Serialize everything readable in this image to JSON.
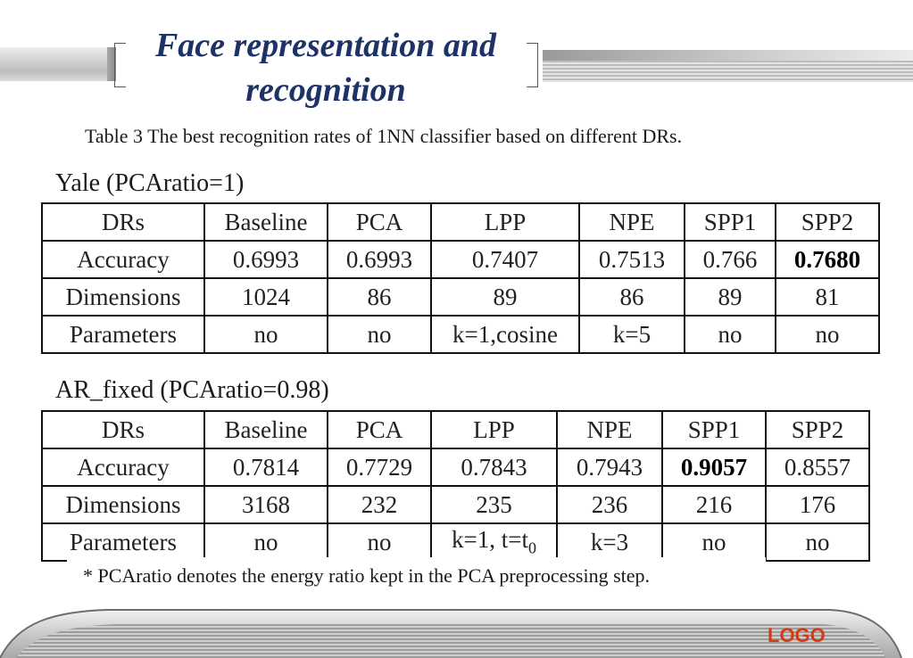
{
  "title": "Face representation and recognition",
  "caption": "Table 3 The best recognition rates of 1NN classifier based on different DRs.",
  "tables": [
    {
      "label": "Yale (PCAratio=1)",
      "header": [
        "DRs",
        "Baseline",
        "PCA",
        "LPP",
        "NPE",
        "SPP1",
        "SPP2"
      ],
      "rows": [
        [
          "Accuracy",
          "0.6993",
          "0.6993",
          "0.7407",
          "0.7513",
          "0.766",
          "0.7680"
        ],
        [
          "Dimensions",
          "1024",
          "86",
          "89",
          "86",
          "89",
          "81"
        ],
        [
          "Parameters",
          "no",
          "no",
          "k=1,cosine",
          "k=5",
          "no",
          "no"
        ]
      ],
      "bold_cell": "Accuracy/SPP2"
    },
    {
      "label": "AR_fixed (PCAratio=0.98)",
      "header": [
        "DRs",
        "Baseline",
        "PCA",
        "LPP",
        "NPE",
        "SPP1",
        "SPP2"
      ],
      "rows": [
        [
          "Accuracy",
          "0.7814",
          "0.7729",
          "0.7843",
          "0.7943",
          "0.9057",
          "0.8557"
        ],
        [
          "Dimensions",
          "3168",
          "232",
          "235",
          "236",
          "216",
          "176"
        ],
        [
          "Parameters",
          "no",
          "no",
          "k=1, t=t0",
          "k=3",
          "no",
          "no"
        ]
      ],
      "bold_cell": "Accuracy/SPP1"
    }
  ],
  "footnote": "* PCAratio denotes the energy ratio kept in the PCA preprocessing step.",
  "logo": "LOGO",
  "colors": {
    "title": "#1f3266",
    "logo": "#d63a12"
  }
}
